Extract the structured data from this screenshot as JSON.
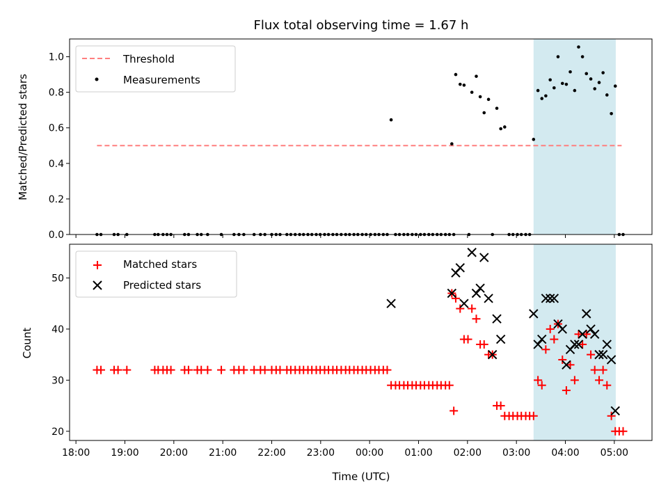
{
  "chart_data": [
    {
      "type": "scatter",
      "title": "Flux total observing time = 1.67 h",
      "ylabel": "Matched/Predicted stars",
      "xlabel": "",
      "ylim": [
        0,
        1.1
      ],
      "yticks": [
        0.0,
        0.2,
        0.4,
        0.6,
        0.8,
        1.0
      ],
      "xlim_hours": [
        17.87,
        29.77
      ],
      "x_tick_hours": [
        18,
        19,
        20,
        21,
        22,
        23,
        24,
        25,
        26,
        27,
        28,
        29
      ],
      "shaded_span_hours": [
        27.35,
        29.03
      ],
      "shade_color": "#d3eaf0",
      "legend": {
        "placement": "top-left",
        "entries": [
          {
            "label": "Threshold",
            "marker": "dashed-line",
            "color": "#ff7f7f"
          },
          {
            "label": "Measurements",
            "marker": "dot",
            "color": "#000000"
          }
        ]
      },
      "threshold": {
        "name": "Threshold",
        "value": 0.5,
        "x_range_hours": [
          18.43,
          29.15
        ],
        "color": "#ff7f7f"
      },
      "series": [
        {
          "name": "Measurements",
          "color": "#000000",
          "points": [
            [
              18.43,
              0
            ],
            [
              18.51,
              0
            ],
            [
              18.78,
              0
            ],
            [
              18.86,
              0
            ],
            [
              19.04,
              0
            ],
            [
              19.61,
              0
            ],
            [
              19.68,
              0
            ],
            [
              19.78,
              0
            ],
            [
              19.86,
              0
            ],
            [
              19.94,
              0
            ],
            [
              20.22,
              0
            ],
            [
              20.3,
              0
            ],
            [
              20.48,
              0
            ],
            [
              20.56,
              0
            ],
            [
              20.69,
              0
            ],
            [
              20.97,
              0
            ],
            [
              21.23,
              0
            ],
            [
              21.33,
              0
            ],
            [
              21.43,
              0
            ],
            [
              21.64,
              0
            ],
            [
              21.77,
              0
            ],
            [
              21.86,
              0
            ],
            [
              22.0,
              0
            ],
            [
              22.09,
              0
            ],
            [
              22.17,
              0
            ],
            [
              22.31,
              0
            ],
            [
              22.39,
              0
            ],
            [
              22.48,
              0
            ],
            [
              22.57,
              0
            ],
            [
              22.65,
              0
            ],
            [
              22.74,
              0
            ],
            [
              22.82,
              0
            ],
            [
              22.91,
              0
            ],
            [
              22.99,
              0
            ],
            [
              23.08,
              0
            ],
            [
              23.16,
              0
            ],
            [
              23.25,
              0
            ],
            [
              23.33,
              0
            ],
            [
              23.42,
              0
            ],
            [
              23.51,
              0
            ],
            [
              23.59,
              0
            ],
            [
              23.68,
              0
            ],
            [
              23.76,
              0
            ],
            [
              23.85,
              0
            ],
            [
              23.93,
              0
            ],
            [
              24.02,
              0
            ],
            [
              24.11,
              0
            ],
            [
              24.19,
              0
            ],
            [
              24.28,
              0
            ],
            [
              24.36,
              0
            ],
            [
              24.44,
              0.645
            ],
            [
              24.53,
              0
            ],
            [
              24.61,
              0
            ],
            [
              24.7,
              0
            ],
            [
              24.78,
              0
            ],
            [
              24.87,
              0
            ],
            [
              24.95,
              0
            ],
            [
              25.04,
              0
            ],
            [
              25.12,
              0
            ],
            [
              25.21,
              0
            ],
            [
              25.29,
              0
            ],
            [
              25.38,
              0
            ],
            [
              25.46,
              0
            ],
            [
              25.55,
              0
            ],
            [
              25.63,
              0
            ],
            [
              25.72,
              0
            ],
            [
              25.68,
              0.51
            ],
            [
              25.76,
              0.9
            ],
            [
              25.85,
              0.845
            ],
            [
              25.93,
              0.84
            ],
            [
              26.03,
              0
            ],
            [
              26.09,
              0.8
            ],
            [
              26.18,
              0.89
            ],
            [
              26.26,
              0.775
            ],
            [
              26.34,
              0.685
            ],
            [
              26.43,
              0.76
            ],
            [
              26.51,
              0
            ],
            [
              26.6,
              0.71
            ],
            [
              26.68,
              0.595
            ],
            [
              26.76,
              0.605
            ],
            [
              26.85,
              0
            ],
            [
              26.93,
              0
            ],
            [
              27.02,
              0
            ],
            [
              27.1,
              0
            ],
            [
              27.19,
              0
            ],
            [
              27.27,
              0
            ],
            [
              27.35,
              0.535
            ],
            [
              27.44,
              0.81
            ],
            [
              27.52,
              0.765
            ],
            [
              27.6,
              0.78
            ],
            [
              27.69,
              0.87
            ],
            [
              27.77,
              0.825
            ],
            [
              27.85,
              1.0
            ],
            [
              27.94,
              0.85
            ],
            [
              28.02,
              0.845
            ],
            [
              28.1,
              0.915
            ],
            [
              28.19,
              0.81
            ],
            [
              28.27,
              1.055
            ],
            [
              28.35,
              1.0
            ],
            [
              28.43,
              0.905
            ],
            [
              28.52,
              0.875
            ],
            [
              28.6,
              0.82
            ],
            [
              28.69,
              0.855
            ],
            [
              28.77,
              0.91
            ],
            [
              28.85,
              0.785
            ],
            [
              28.94,
              0.68
            ],
            [
              29.02,
              0.835
            ],
            [
              29.1,
              0
            ],
            [
              29.18,
              0
            ]
          ]
        }
      ]
    },
    {
      "type": "scatter",
      "title": "",
      "ylabel": "Count",
      "xlabel": "Time (UTC)",
      "ylim": [
        18.2,
        56.6
      ],
      "yticks": [
        20,
        30,
        40,
        50
      ],
      "xlim_hours": [
        17.87,
        29.77
      ],
      "x_tick_hours": [
        18,
        19,
        20,
        21,
        22,
        23,
        24,
        25,
        26,
        27,
        28,
        29
      ],
      "x_tick_labels": [
        "18:00",
        "19:00",
        "20:00",
        "21:00",
        "22:00",
        "23:00",
        "00:00",
        "01:00",
        "02:00",
        "03:00",
        "04:00",
        "05:00"
      ],
      "shaded_span_hours": [
        27.35,
        29.03
      ],
      "shade_color": "#d3eaf0",
      "legend": {
        "placement": "top-left",
        "entries": [
          {
            "label": "Matched stars",
            "marker": "plus",
            "color": "#ff0000"
          },
          {
            "label": "Predicted stars",
            "marker": "x",
            "color": "#000000"
          }
        ]
      },
      "series": [
        {
          "name": "Matched stars",
          "color": "#ff0000",
          "marker": "plus",
          "points": [
            [
              18.43,
              32
            ],
            [
              18.51,
              32
            ],
            [
              18.78,
              32
            ],
            [
              18.86,
              32
            ],
            [
              19.04,
              32
            ],
            [
              19.61,
              32
            ],
            [
              19.68,
              32
            ],
            [
              19.78,
              32
            ],
            [
              19.86,
              32
            ],
            [
              19.94,
              32
            ],
            [
              20.22,
              32
            ],
            [
              20.3,
              32
            ],
            [
              20.48,
              32
            ],
            [
              20.56,
              32
            ],
            [
              20.69,
              32
            ],
            [
              20.97,
              32
            ],
            [
              21.23,
              32
            ],
            [
              21.33,
              32
            ],
            [
              21.43,
              32
            ],
            [
              21.64,
              32
            ],
            [
              21.77,
              32
            ],
            [
              21.86,
              32
            ],
            [
              22.0,
              32
            ],
            [
              22.09,
              32
            ],
            [
              22.17,
              32
            ],
            [
              22.31,
              32
            ],
            [
              22.39,
              32
            ],
            [
              22.48,
              32
            ],
            [
              22.57,
              32
            ],
            [
              22.65,
              32
            ],
            [
              22.74,
              32
            ],
            [
              22.82,
              32
            ],
            [
              22.91,
              32
            ],
            [
              22.99,
              32
            ],
            [
              23.08,
              32
            ],
            [
              23.16,
              32
            ],
            [
              23.25,
              32
            ],
            [
              23.33,
              32
            ],
            [
              23.42,
              32
            ],
            [
              23.51,
              32
            ],
            [
              23.59,
              32
            ],
            [
              23.68,
              32
            ],
            [
              23.76,
              32
            ],
            [
              23.85,
              32
            ],
            [
              23.93,
              32
            ],
            [
              24.02,
              32
            ],
            [
              24.11,
              32
            ],
            [
              24.19,
              32
            ],
            [
              24.28,
              32
            ],
            [
              24.36,
              32
            ],
            [
              24.44,
              29
            ],
            [
              24.53,
              29
            ],
            [
              24.61,
              29
            ],
            [
              24.7,
              29
            ],
            [
              24.78,
              29
            ],
            [
              24.87,
              29
            ],
            [
              24.95,
              29
            ],
            [
              25.04,
              29
            ],
            [
              25.12,
              29
            ],
            [
              25.21,
              29
            ],
            [
              25.29,
              29
            ],
            [
              25.38,
              29
            ],
            [
              25.46,
              29
            ],
            [
              25.55,
              29
            ],
            [
              25.63,
              29
            ],
            [
              25.72,
              24
            ],
            [
              25.68,
              47
            ],
            [
              25.76,
              46
            ],
            [
              25.85,
              44
            ],
            [
              25.93,
              38
            ],
            [
              26.01,
              38
            ],
            [
              26.09,
              44
            ],
            [
              26.18,
              42
            ],
            [
              26.26,
              37
            ],
            [
              26.34,
              37
            ],
            [
              26.43,
              35
            ],
            [
              26.51,
              35
            ],
            [
              26.6,
              25
            ],
            [
              26.68,
              25
            ],
            [
              26.76,
              23
            ],
            [
              26.85,
              23
            ],
            [
              26.93,
              23
            ],
            [
              27.02,
              23
            ],
            [
              27.1,
              23
            ],
            [
              27.19,
              23
            ],
            [
              27.27,
              23
            ],
            [
              27.35,
              23
            ],
            [
              27.44,
              30
            ],
            [
              27.52,
              29
            ],
            [
              27.6,
              36
            ],
            [
              27.69,
              40
            ],
            [
              27.77,
              38
            ],
            [
              27.85,
              41
            ],
            [
              27.94,
              34
            ],
            [
              28.02,
              28
            ],
            [
              28.1,
              33
            ],
            [
              28.19,
              30
            ],
            [
              28.27,
              39
            ],
            [
              28.35,
              37
            ],
            [
              28.43,
              39
            ],
            [
              28.52,
              35
            ],
            [
              28.6,
              32
            ],
            [
              28.69,
              30
            ],
            [
              28.77,
              32
            ],
            [
              28.85,
              29
            ],
            [
              28.94,
              23
            ],
            [
              29.02,
              20
            ],
            [
              29.1,
              20
            ],
            [
              29.18,
              20
            ]
          ]
        },
        {
          "name": "Predicted stars",
          "color": "#000000",
          "marker": "x",
          "points": [
            [
              24.44,
              45
            ],
            [
              25.68,
              47
            ],
            [
              25.76,
              51
            ],
            [
              25.85,
              52
            ],
            [
              25.93,
              45
            ],
            [
              26.09,
              55
            ],
            [
              26.18,
              47
            ],
            [
              26.26,
              48
            ],
            [
              26.34,
              54
            ],
            [
              26.43,
              46
            ],
            [
              26.6,
              42
            ],
            [
              26.68,
              38
            ],
            [
              26.51,
              35
            ],
            [
              27.35,
              43
            ],
            [
              27.44,
              37
            ],
            [
              27.52,
              38
            ],
            [
              27.6,
              46
            ],
            [
              27.69,
              46
            ],
            [
              27.77,
              46
            ],
            [
              27.85,
              41
            ],
            [
              27.94,
              40
            ],
            [
              28.02,
              33
            ],
            [
              28.1,
              36
            ],
            [
              28.19,
              37
            ],
            [
              28.27,
              37
            ],
            [
              28.35,
              39
            ],
            [
              28.43,
              43
            ],
            [
              28.52,
              40
            ],
            [
              28.6,
              39
            ],
            [
              28.69,
              35
            ],
            [
              28.77,
              35
            ],
            [
              28.85,
              37
            ],
            [
              28.94,
              34
            ],
            [
              29.02,
              24
            ]
          ]
        }
      ]
    }
  ]
}
